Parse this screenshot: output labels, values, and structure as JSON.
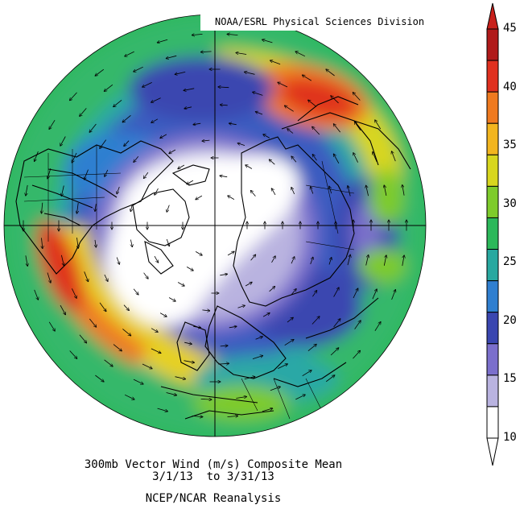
{
  "credit": "NOAA/ESRL Physical Sciences Division",
  "caption": {
    "line1": "300mb Vector Wind (m/s) Composite Mean",
    "line2": "3/1/13  to 3/31/13",
    "line3": "NCEP/NCAR Reanalysis"
  },
  "colorbar": {
    "tick_labels": [
      "10",
      "15",
      "20",
      "25",
      "30",
      "35",
      "40",
      "45"
    ],
    "colors": [
      "#ffffff",
      "#b9b3e0",
      "#7b6fcc",
      "#3a46b0",
      "#2f7fd0",
      "#28a8a0",
      "#2cb85a",
      "#7ecb2b",
      "#d8d61e",
      "#f2b51f",
      "#ef7a20",
      "#e0301f",
      "#b01a1a"
    ],
    "arrow_top": "#c8201b",
    "arrow_bottom": "#ffffff"
  },
  "map": {
    "projection": "north-polar-stereographic",
    "features": [
      "wind-speed-shading",
      "wind-vectors",
      "coastlines",
      "country-borders",
      "meridian-lines"
    ]
  }
}
